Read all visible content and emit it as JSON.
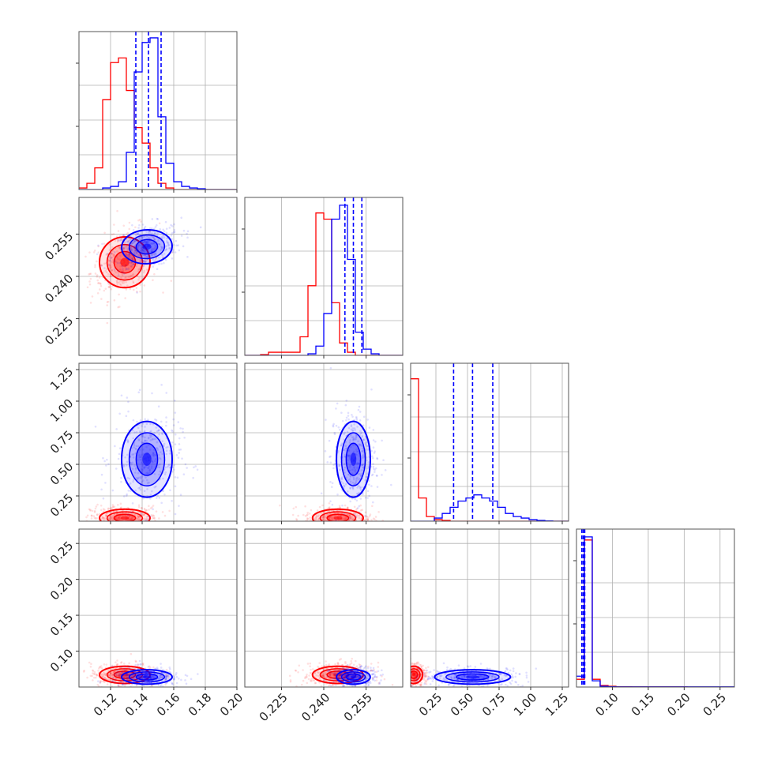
{
  "chart_data": {
    "type": "corner",
    "title": "",
    "parameters": [
      {
        "range": [
          0.1,
          0.2
        ],
        "ticks": [
          0.12,
          0.14,
          0.16,
          0.18,
          0.2
        ],
        "tick_labels": [
          "0.12",
          "0.14",
          "0.16",
          "0.18",
          "0.20"
        ]
      },
      {
        "range": [
          0.212,
          0.268
        ],
        "ticks": [
          0.225,
          0.24,
          0.255
        ],
        "tick_labels": [
          "0.225",
          "0.240",
          "0.255"
        ]
      },
      {
        "range": [
          0.05,
          1.3
        ],
        "ticks": [
          0.25,
          0.5,
          0.75,
          1.0,
          1.25
        ],
        "tick_labels": [
          "0.25",
          "0.50",
          "0.75",
          "1.00",
          "1.25"
        ]
      },
      {
        "range": [
          0.05,
          0.27
        ],
        "ticks": [
          0.1,
          0.15,
          0.2,
          0.25
        ],
        "tick_labels": [
          "0.10",
          "0.15",
          "0.20",
          "0.25"
        ]
      }
    ],
    "series": [
      {
        "color": "#ff0000",
        "center": [
          0.129,
          0.245,
          0.075,
          0.067
        ],
        "sigma": [
          0.008,
          0.0045,
          0.035,
          0.006
        ],
        "corr": {
          "0-1": 0.3
        },
        "histograms": [
          {
            "edges": [
              0.1,
              0.105,
              0.11,
              0.115,
              0.12,
              0.125,
              0.13,
              0.135,
              0.14,
              0.145,
              0.15,
              0.155,
              0.16,
              0.165,
              0.17,
              0.175,
              0.18,
              0.185,
              0.19,
              0.195,
              0.2
            ],
            "counts": [
              0.01,
              0.04,
              0.14,
              0.58,
              0.82,
              0.85,
              0.64,
              0.4,
              0.3,
              0.14,
              0.04,
              0.01,
              0,
              0,
              0,
              0,
              0,
              0,
              0,
              0
            ]
          },
          {
            "edges": [
              0.212,
              0.2148,
              0.2176,
              0.2204,
              0.2232,
              0.226,
              0.2288,
              0.2316,
              0.2344,
              0.2372,
              0.24,
              0.2428,
              0.2456,
              0.2484,
              0.2512,
              0.254,
              0.2568,
              0.2596,
              0.2624,
              0.2652,
              0.268
            ],
            "counts": [
              0,
              0,
              0.005,
              0.02,
              0.02,
              0.02,
              0.02,
              0.12,
              0.45,
              0.92,
              0.88,
              0.34,
              0.08,
              0.02,
              0,
              0,
              0,
              0,
              0,
              0
            ]
          },
          {
            "edges": [
              0.05,
              0.1125,
              0.175,
              0.2375,
              0.3,
              0.3625,
              0.425,
              0.4875,
              0.55,
              0.6125,
              0.675,
              0.7375,
              0.8,
              0.8625,
              0.925,
              0.9875,
              1.05,
              1.1125,
              1.175,
              1.2375,
              1.3
            ],
            "counts": [
              0.92,
              0.15,
              0.03,
              0.01,
              0.005,
              0,
              0,
              0,
              0,
              0,
              0,
              0,
              0,
              0,
              0,
              0,
              0,
              0,
              0,
              0
            ]
          },
          {
            "edges": [
              0.05,
              0.061,
              0.072,
              0.083,
              0.094,
              0.105,
              0.116,
              0.127,
              0.138,
              0.149,
              0.16,
              0.171,
              0.182,
              0.193,
              0.204,
              0.215,
              0.226,
              0.237,
              0.248,
              0.259,
              0.27
            ],
            "counts": [
              0.05,
              0.95,
              0.05,
              0.01,
              0.005,
              0.002,
              0.002,
              0.001,
              0.001,
              0.001,
              0.001,
              0.001,
              0.001,
              0.001,
              0,
              0,
              0,
              0,
              0,
              0
            ]
          }
        ],
        "quantiles": []
      },
      {
        "color": "#0000ff",
        "center": [
          0.143,
          0.2505,
          0.54,
          0.064
        ],
        "sigma": [
          0.008,
          0.003,
          0.15,
          0.005
        ],
        "corr": {
          "0-1": 0.3
        },
        "histograms": [
          {
            "edges": [
              0.1,
              0.105,
              0.11,
              0.115,
              0.12,
              0.125,
              0.13,
              0.135,
              0.14,
              0.145,
              0.15,
              0.155,
              0.16,
              0.165,
              0.17,
              0.175,
              0.18,
              0.185,
              0.19,
              0.195,
              0.2
            ],
            "counts": [
              0,
              0,
              0,
              0.01,
              0.02,
              0.05,
              0.24,
              0.76,
              0.95,
              0.98,
              0.47,
              0.17,
              0.05,
              0.02,
              0.01,
              0.005,
              0,
              0,
              0,
              0
            ]
          },
          {
            "edges": [
              0.212,
              0.2148,
              0.2176,
              0.2204,
              0.2232,
              0.226,
              0.2288,
              0.2316,
              0.2344,
              0.2372,
              0.24,
              0.2428,
              0.2456,
              0.2484,
              0.2512,
              0.254,
              0.2568,
              0.2596,
              0.2624,
              0.2652,
              0.268
            ],
            "counts": [
              0,
              0,
              0,
              0,
              0,
              0,
              0,
              0,
              0.01,
              0.06,
              0.27,
              0.88,
              0.97,
              0.62,
              0.15,
              0.04,
              0.01,
              0,
              0,
              0
            ]
          },
          {
            "edges": [
              0.05,
              0.1125,
              0.175,
              0.2375,
              0.3,
              0.3625,
              0.425,
              0.4875,
              0.55,
              0.6125,
              0.675,
              0.7375,
              0.8,
              0.8625,
              0.925,
              0.9875,
              1.05,
              1.1125,
              1.175,
              1.2375,
              1.3
            ],
            "counts": [
              0,
              0,
              0,
              0.02,
              0.05,
              0.09,
              0.13,
              0.15,
              0.17,
              0.15,
              0.13,
              0.09,
              0.05,
              0.03,
              0.02,
              0.01,
              0.005,
              0.002,
              0,
              0
            ]
          },
          {
            "edges": [
              0.05,
              0.061,
              0.072,
              0.083,
              0.094,
              0.105,
              0.116,
              0.127,
              0.138,
              0.149,
              0.16,
              0.171,
              0.182,
              0.193,
              0.204,
              0.215,
              0.226,
              0.237,
              0.248,
              0.259,
              0.27
            ],
            "counts": [
              0.07,
              0.97,
              0.04,
              0.005,
              0.002,
              0.001,
              0.001,
              0.001,
              0.001,
              0.001,
              0.001,
              0.001,
              0.001,
              0.001,
              0.001,
              0.001,
              0.001,
              0.001,
              0.001,
              0.001
            ]
          }
        ],
        "quantiles": [
          [
            0.136,
            0.144,
            0.152
          ],
          [
            0.2475,
            0.2505,
            0.2535
          ],
          [
            0.39,
            0.54,
            0.7
          ],
          [
            0.0575,
            0.0595,
            0.0615
          ]
        ]
      }
    ],
    "grid": true
  }
}
